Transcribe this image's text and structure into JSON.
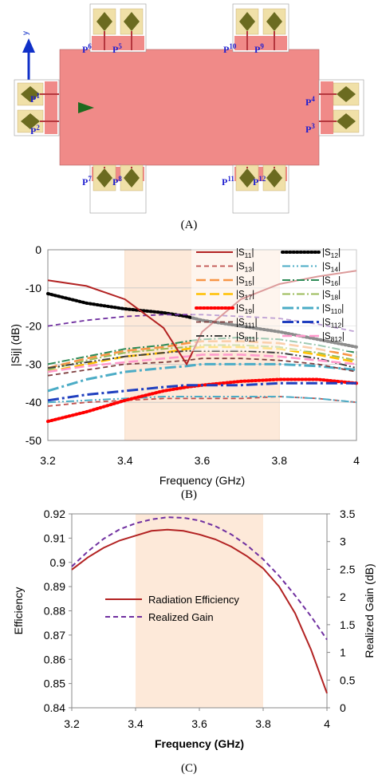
{
  "panel_a": {
    "caption": "(A)",
    "axis_label": "y",
    "ports": [
      "P1",
      "P2",
      "P3",
      "P4",
      "P5",
      "P6",
      "P7",
      "P8",
      "P9",
      "P10",
      "P11",
      "P12"
    ],
    "colors": {
      "ground": "#f08a88",
      "feed": "#b5373e",
      "pad": "#f0e0a8",
      "element": "#6b6b20",
      "port_text": "#1f1fd0",
      "arrow": "#1e6a1e",
      "axis": "#1030c8"
    }
  },
  "chart_data": [
    {
      "type": "line",
      "panel": "(B)",
      "xlabel": "Frequency (GHz)",
      "ylabel": "|Sij| (dB)",
      "xlim": [
        3.2,
        4.0
      ],
      "ylim": [
        -50,
        0
      ],
      "xticks": [
        "3.2",
        "3.4",
        "3.6",
        "3.8",
        "4"
      ],
      "yticks": [
        "0",
        "-10",
        "-20",
        "-30",
        "-40",
        "-50"
      ],
      "grid": "horizontal",
      "highlight_band": [
        3.4,
        3.8
      ],
      "legend_position": "top-right",
      "x": [
        3.2,
        3.3,
        3.4,
        3.5,
        3.56,
        3.6,
        3.7,
        3.8,
        3.9,
        4.0
      ],
      "series": [
        {
          "name": "|S11|",
          "color": "#b22222",
          "style": "solid",
          "values": [
            -8,
            -9.5,
            -13,
            -20.5,
            -30,
            -21.5,
            -13,
            -9,
            -7,
            -5.5
          ]
        },
        {
          "name": "|S12|",
          "color": "#000000",
          "style": "dots",
          "values": [
            -11.5,
            -14,
            -15.5,
            -16.5,
            -17.5,
            -18.5,
            -20,
            -21.5,
            -23.5,
            -25.5
          ]
        },
        {
          "name": "|S13|",
          "color": "#c0504d",
          "style": "dash",
          "values": [
            -41,
            -40,
            -39.5,
            -39,
            -39,
            -39,
            -39,
            -38.5,
            -39,
            -40
          ]
        },
        {
          "name": "|S14|",
          "color": "#4bacc6",
          "style": "dashdotdot",
          "values": [
            -40,
            -39.5,
            -39,
            -38.5,
            -38.5,
            -38.5,
            -38.5,
            -38.5,
            -39,
            -40
          ]
        },
        {
          "name": "|S15|",
          "color": "#f79646",
          "style": "longdash",
          "values": [
            -31,
            -28.5,
            -26.5,
            -25.5,
            -24.5,
            -24,
            -24,
            -24.5,
            -26,
            -28
          ]
        },
        {
          "name": "|S16|",
          "color": "#2e8b57",
          "style": "dashdot",
          "values": [
            -30,
            -28,
            -26,
            -25,
            -24,
            -23.5,
            -23,
            -23.5,
            -25,
            -27
          ]
        },
        {
          "name": "|S17|",
          "color": "#ffc000",
          "style": "longdash",
          "values": [
            -32,
            -30,
            -28,
            -27,
            -26,
            -25.5,
            -25.5,
            -26,
            -27.5,
            -29.5
          ]
        },
        {
          "name": "|S18|",
          "color": "#9bbb59",
          "style": "dashdot",
          "values": [
            -31.5,
            -29,
            -27,
            -26,
            -25.5,
            -25,
            -25,
            -25.5,
            -27,
            -29
          ]
        },
        {
          "name": "|S19|",
          "color": "#ff0000",
          "style": "dots",
          "values": [
            -45,
            -42.5,
            -39.5,
            -37,
            -36,
            -35.5,
            -34.5,
            -34,
            -34,
            -35
          ]
        },
        {
          "name": "|S110|",
          "color": "#4bacc6",
          "style": "longdashdot",
          "values": [
            -37,
            -34,
            -32,
            -31,
            -30.5,
            -30,
            -30,
            -30,
            -30.5,
            -31.5
          ]
        },
        {
          "name": "|S111|",
          "color": "#7f3f3f",
          "style": "dash",
          "values": [
            -33,
            -31.5,
            -30,
            -29.5,
            -29,
            -28.5,
            -28.5,
            -29,
            -30,
            -32
          ]
        },
        {
          "name": "|S112|",
          "color": "#1f3fbf",
          "style": "longdashdot",
          "values": [
            -39.5,
            -38,
            -37,
            -36,
            -35.5,
            -35.5,
            -35.5,
            -35,
            -35,
            -35
          ]
        },
        {
          "name": "|S811|",
          "color": "#404040",
          "style": "dashdotdot",
          "values": [
            -31,
            -29.5,
            -28,
            -27,
            -26.5,
            -26.5,
            -26.5,
            -27,
            -28.5,
            -31
          ]
        },
        {
          "name": "|S812|",
          "color": "#ff99cc",
          "style": "longdash",
          "values": [
            -32,
            -30.5,
            -29.5,
            -28.5,
            -28,
            -27.5,
            -27.5,
            -28,
            -29,
            -30
          ]
        },
        {
          "name": "",
          "color": "#7030a0",
          "style": "dash",
          "values": [
            -20,
            -18.5,
            -17.5,
            -17,
            -17,
            -17,
            -17.5,
            -18,
            -19.5,
            -21.5
          ]
        }
      ]
    },
    {
      "type": "line",
      "panel": "(C)",
      "xlabel": "Frequency (GHz)",
      "ylabel": "Efficiency",
      "ylabel_right": "Realized Gain (dB)",
      "xlim": [
        3.2,
        4.0
      ],
      "ylim": [
        0.84,
        0.92
      ],
      "ylim_right": [
        0,
        3.5
      ],
      "xticks": [
        "3.2",
        "3.4",
        "3.6",
        "3.8",
        "4"
      ],
      "yticks": [
        "0.92",
        "0.91",
        "0.9",
        "0.89",
        "0.88",
        "0.87",
        "0.86",
        "0.85",
        "0.84"
      ],
      "yticks_right": [
        "3.5",
        "3",
        "2.5",
        "2",
        "1.5",
        "1",
        "0.5",
        "0"
      ],
      "highlight_band": [
        3.4,
        3.8
      ],
      "legend_position": "center-left",
      "x": [
        3.2,
        3.25,
        3.3,
        3.35,
        3.4,
        3.45,
        3.5,
        3.55,
        3.6,
        3.65,
        3.7,
        3.75,
        3.8,
        3.85,
        3.9,
        3.95,
        4.0
      ],
      "series": [
        {
          "name": "Radiation Efficiency",
          "color": "#b22222",
          "style": "solid",
          "axis": "left",
          "values": [
            0.897,
            0.902,
            0.906,
            0.909,
            0.911,
            0.913,
            0.9135,
            0.913,
            0.9115,
            0.9095,
            0.9065,
            0.9025,
            0.8975,
            0.89,
            0.879,
            0.864,
            0.846
          ]
        },
        {
          "name": "Realized Gain",
          "color": "#7030a0",
          "style": "dash",
          "axis": "right",
          "values": [
            2.55,
            2.82,
            3.05,
            3.22,
            3.33,
            3.4,
            3.44,
            3.43,
            3.38,
            3.28,
            3.13,
            2.93,
            2.68,
            2.38,
            2.03,
            1.65,
            1.23
          ]
        }
      ]
    }
  ]
}
